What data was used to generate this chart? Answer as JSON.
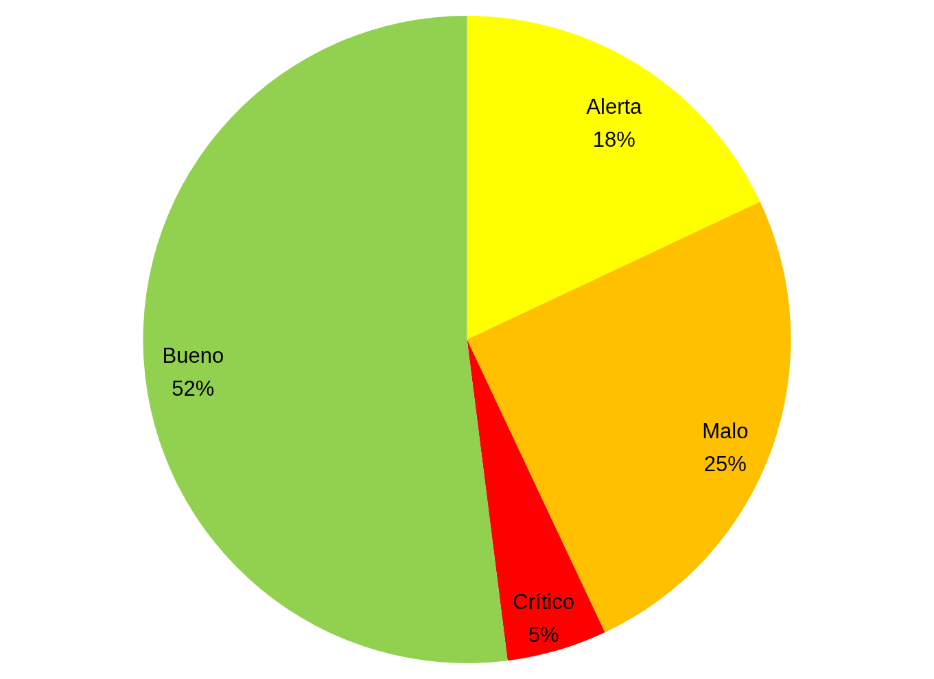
{
  "chart_data": {
    "type": "pie",
    "categories": [
      "Alerta",
      "Malo",
      "Crítico",
      "Bueno"
    ],
    "values": [
      18,
      25,
      5,
      52
    ],
    "colors": [
      "#ffff00",
      "#ffc000",
      "#ff0000",
      "#92d050"
    ],
    "value_labels": [
      "18%",
      "25%",
      "5%",
      "52%"
    ]
  }
}
